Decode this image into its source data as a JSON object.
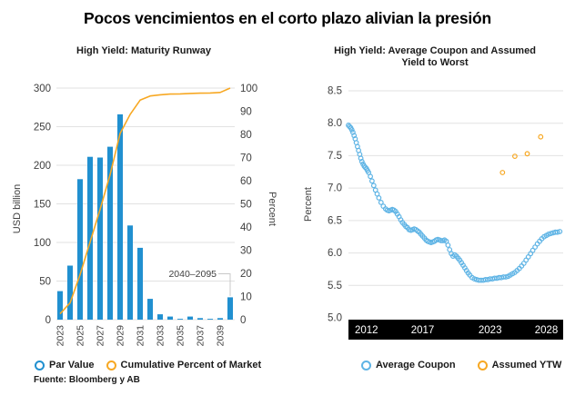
{
  "header": {
    "title": "Pocos vencimientos en el corto plazo alivian la presión"
  },
  "footer": {
    "source": "Fuente: Bloomberg y AB"
  },
  "colors": {
    "bar_blue": "#2190D0",
    "scatter_blue": "#5FB4E5",
    "orange": "#F7A823",
    "grid": "#E2E2E2",
    "axis_text": "#3F3F3F",
    "band_bg": "#000000",
    "band_text": "#FFFFFF",
    "annotation_line": "#C8C8C8"
  },
  "chart_data": [
    {
      "type": "bar",
      "title": "High Yield: Maturity Runway",
      "ylabel_left": "USD billion",
      "ylabel_right": "Percent",
      "ylim_left": [
        0,
        300
      ],
      "ylim_right": [
        0,
        100
      ],
      "yticks_left": [
        0,
        50,
        100,
        150,
        200,
        250,
        300
      ],
      "yticks_right": [
        0,
        10,
        20,
        30,
        40,
        50,
        60,
        70,
        80,
        90,
        100
      ],
      "categories": [
        "2023",
        "2024",
        "2025",
        "2026",
        "2027",
        "2028",
        "2029",
        "2030",
        "2031",
        "2032",
        "2033",
        "2034",
        "2035",
        "2036",
        "2037",
        "2038",
        "2039",
        "2040–2095"
      ],
      "xtick_labels": [
        "2023",
        "2025",
        "2027",
        "2029",
        "2031",
        "2033",
        "2035",
        "2037",
        "2039"
      ],
      "grid": true,
      "legend_position": "bottom",
      "annotation": {
        "label": "2040–2095",
        "target_category": "2040–2095"
      },
      "series": [
        {
          "name": "Par Value",
          "type": "bar",
          "axis": "left",
          "values": [
            37,
            70,
            182,
            211,
            210,
            224,
            266,
            122,
            93,
            27,
            7,
            4,
            1,
            4,
            2,
            1,
            2,
            29
          ]
        },
        {
          "name": "Cumulative Percent of Market",
          "type": "line",
          "axis": "right",
          "values": [
            2.5,
            7.2,
            19.4,
            33.5,
            47.6,
            62.6,
            80.4,
            88.6,
            94.8,
            96.6,
            97.1,
            97.4,
            97.5,
            97.7,
            97.8,
            97.9,
            98.1,
            100
          ]
        }
      ]
    },
    {
      "type": "scatter",
      "title": "High Yield: Average Coupon and Assumed Yield to Worst",
      "ylabel": "Percent",
      "ylim": [
        5.0,
        8.5
      ],
      "yticks": [
        5.0,
        5.5,
        6.0,
        6.5,
        7.0,
        7.5,
        8.0,
        8.5
      ],
      "xlim": [
        2010.4,
        2029.5
      ],
      "xticks": [
        2012,
        2017,
        2023,
        2028
      ],
      "grid": true,
      "legend_position": "bottom",
      "series": [
        {
          "name": "Average Coupon",
          "points": [
            [
              2010.4,
              7.97
            ],
            [
              2010.5,
              7.95
            ],
            [
              2010.6,
              7.93
            ],
            [
              2010.7,
              7.9
            ],
            [
              2010.8,
              7.86
            ],
            [
              2010.9,
              7.81
            ],
            [
              2011.0,
              7.76
            ],
            [
              2011.1,
              7.7
            ],
            [
              2011.2,
              7.64
            ],
            [
              2011.3,
              7.58
            ],
            [
              2011.4,
              7.52
            ],
            [
              2011.5,
              7.46
            ],
            [
              2011.6,
              7.41
            ],
            [
              2011.7,
              7.37
            ],
            [
              2011.8,
              7.34
            ],
            [
              2011.9,
              7.32
            ],
            [
              2012.0,
              7.3
            ],
            [
              2012.1,
              7.27
            ],
            [
              2012.2,
              7.24
            ],
            [
              2012.35,
              7.18
            ],
            [
              2012.5,
              7.11
            ],
            [
              2012.65,
              7.04
            ],
            [
              2012.8,
              6.97
            ],
            [
              2012.95,
              6.91
            ],
            [
              2013.1,
              6.85
            ],
            [
              2013.3,
              6.78
            ],
            [
              2013.5,
              6.72
            ],
            [
              2013.7,
              6.68
            ],
            [
              2013.85,
              6.66
            ],
            [
              2014.0,
              6.65
            ],
            [
              2014.15,
              6.66
            ],
            [
              2014.3,
              6.67
            ],
            [
              2014.45,
              6.66
            ],
            [
              2014.6,
              6.64
            ],
            [
              2014.75,
              6.6
            ],
            [
              2014.9,
              6.56
            ],
            [
              2015.05,
              6.51
            ],
            [
              2015.2,
              6.47
            ],
            [
              2015.35,
              6.44
            ],
            [
              2015.5,
              6.41
            ],
            [
              2015.65,
              6.39
            ],
            [
              2015.8,
              6.36
            ],
            [
              2015.95,
              6.35
            ],
            [
              2016.1,
              6.36
            ],
            [
              2016.25,
              6.37
            ],
            [
              2016.4,
              6.36
            ],
            [
              2016.55,
              6.34
            ],
            [
              2016.7,
              6.32
            ],
            [
              2016.85,
              6.29
            ],
            [
              2017.0,
              6.26
            ],
            [
              2017.15,
              6.23
            ],
            [
              2017.3,
              6.2
            ],
            [
              2017.45,
              6.18
            ],
            [
              2017.6,
              6.17
            ],
            [
              2017.75,
              6.16
            ],
            [
              2017.9,
              6.17
            ],
            [
              2018.05,
              6.18
            ],
            [
              2018.2,
              6.2
            ],
            [
              2018.35,
              6.21
            ],
            [
              2018.5,
              6.2
            ],
            [
              2018.65,
              6.19
            ],
            [
              2018.8,
              6.19
            ],
            [
              2018.95,
              6.2
            ],
            [
              2019.1,
              6.18
            ],
            [
              2019.25,
              6.12
            ],
            [
              2019.4,
              6.05
            ],
            [
              2019.55,
              5.99
            ],
            [
              2019.7,
              5.95
            ],
            [
              2019.85,
              5.97
            ],
            [
              2020.0,
              5.95
            ],
            [
              2020.15,
              5.92
            ],
            [
              2020.3,
              5.89
            ],
            [
              2020.45,
              5.85
            ],
            [
              2020.6,
              5.81
            ],
            [
              2020.75,
              5.77
            ],
            [
              2020.9,
              5.73
            ],
            [
              2021.05,
              5.69
            ],
            [
              2021.2,
              5.66
            ],
            [
              2021.4,
              5.62
            ],
            [
              2021.6,
              5.6
            ],
            [
              2021.8,
              5.59
            ],
            [
              2022.0,
              5.58
            ],
            [
              2022.2,
              5.58
            ],
            [
              2022.4,
              5.58
            ],
            [
              2022.6,
              5.59
            ],
            [
              2022.8,
              5.59
            ],
            [
              2023.0,
              5.6
            ],
            [
              2023.2,
              5.6
            ],
            [
              2023.4,
              5.61
            ],
            [
              2023.6,
              5.61
            ],
            [
              2023.8,
              5.62
            ],
            [
              2024.0,
              5.62
            ],
            [
              2024.2,
              5.63
            ],
            [
              2024.4,
              5.63
            ],
            [
              2024.6,
              5.64
            ],
            [
              2024.8,
              5.66
            ],
            [
              2025.0,
              5.68
            ],
            [
              2025.2,
              5.7
            ],
            [
              2025.4,
              5.73
            ],
            [
              2025.6,
              5.76
            ],
            [
              2025.8,
              5.8
            ],
            [
              2026.0,
              5.84
            ],
            [
              2026.2,
              5.89
            ],
            [
              2026.4,
              5.94
            ],
            [
              2026.6,
              5.99
            ],
            [
              2026.8,
              6.04
            ],
            [
              2027.0,
              6.09
            ],
            [
              2027.2,
              6.14
            ],
            [
              2027.4,
              6.18
            ],
            [
              2027.6,
              6.22
            ],
            [
              2027.8,
              6.25
            ],
            [
              2028.0,
              6.27
            ],
            [
              2028.2,
              6.29
            ],
            [
              2028.4,
              6.3
            ],
            [
              2028.6,
              6.31
            ],
            [
              2028.8,
              6.32
            ],
            [
              2029.0,
              6.32
            ],
            [
              2029.2,
              6.33
            ]
          ]
        },
        {
          "name": "Assumed YTW",
          "points": [
            [
              2024.1,
              7.24
            ],
            [
              2025.2,
              7.49
            ],
            [
              2026.3,
              7.53
            ],
            [
              2027.5,
              7.79
            ]
          ]
        }
      ]
    }
  ]
}
